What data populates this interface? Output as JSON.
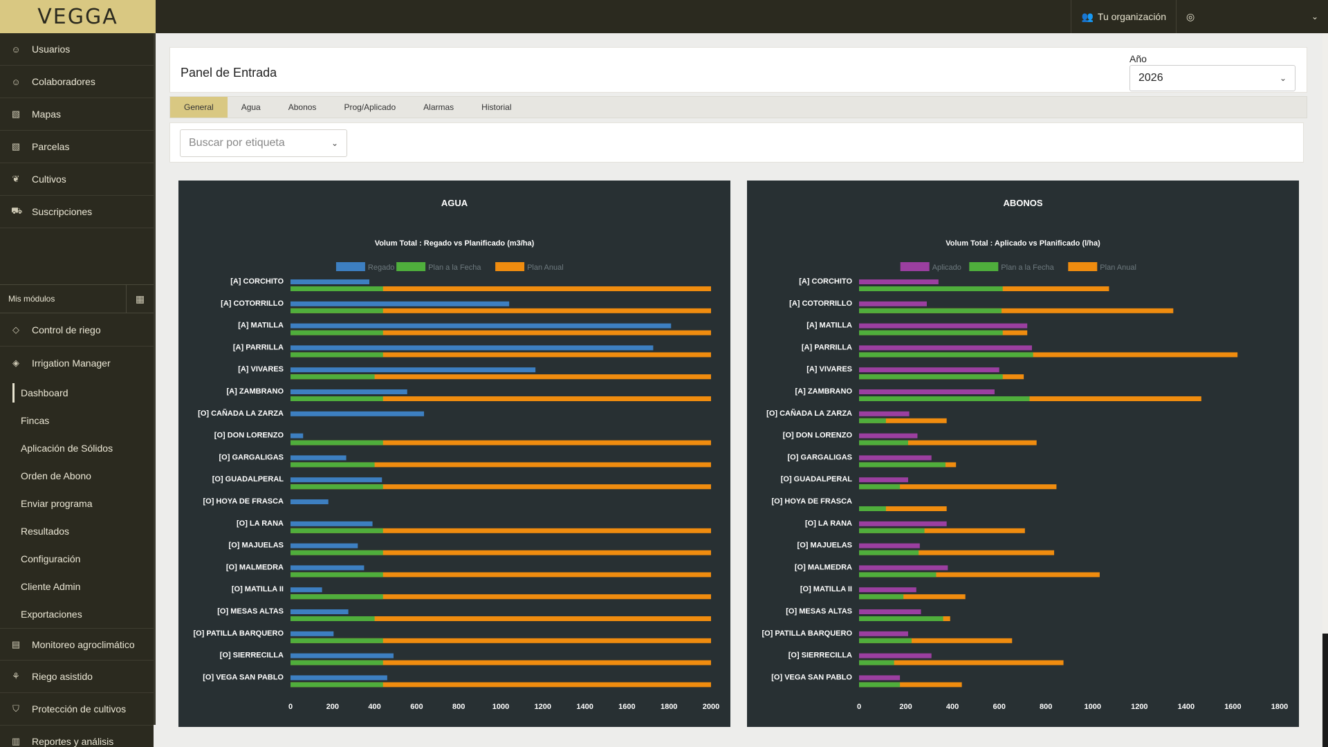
{
  "app": {
    "logo": "VEGGA"
  },
  "topbar": {
    "org_label": "Tu organización",
    "account_label": "",
    "account_chevron": "⌄"
  },
  "sidebar": {
    "items": [
      {
        "label": "Usuarios",
        "icon": "user-icon"
      },
      {
        "label": "Colaboradores",
        "icon": "users-icon"
      },
      {
        "label": "Mapas",
        "icon": "map-icon"
      },
      {
        "label": "Parcelas",
        "icon": "map-icon"
      },
      {
        "label": "Cultivos",
        "icon": "leaf-icon"
      },
      {
        "label": "Suscripciones",
        "icon": "cart-icon"
      }
    ],
    "modules_header": "Mis módulos",
    "modules": [
      {
        "label": "Control de riego",
        "icon": "drop-icon"
      },
      {
        "label": "Irrigation Manager",
        "icon": "drop-icon"
      }
    ],
    "submenu": [
      "Dashboard",
      "Fincas",
      "Aplicación de Sólidos",
      "Orden de Abono",
      "Enviar programa",
      "Resultados",
      "Configuración",
      "Cliente Admin",
      "Exportaciones"
    ],
    "modules_after": [
      {
        "label": "Monitoreo agroclimático",
        "icon": "chart-icon"
      },
      {
        "label": "Riego asistido",
        "icon": "plant-icon"
      },
      {
        "label": "Protección de cultivos",
        "icon": "shield-icon"
      },
      {
        "label": "Reportes y análisis",
        "icon": "report-icon"
      }
    ]
  },
  "header": {
    "title": "Panel de Entrada",
    "year_label": "Año",
    "year_value": "2026"
  },
  "tabs": [
    "General",
    "Agua",
    "Abonos",
    "Prog/Aplicado",
    "Alarmas",
    "Historial"
  ],
  "filter": {
    "tag_placeholder": "Buscar por etiqueta"
  },
  "chart_data": [
    {
      "type": "bar",
      "orientation": "horizontal",
      "panel_title": "AGUA",
      "title": "Volum Total : Regado vs Planificado (m3/ha)",
      "legend_position": "top",
      "categories": [
        "[A] CORCHITO",
        "[A] COTORRILLO",
        "[A] MATILLA",
        "[A] PARRILLA",
        "[A] VIVARES",
        "[A] ZAMBRANO",
        "[O] CAÑADA LA ZARZA",
        "[O] DON LORENZO",
        "[O] GARGALIGAS",
        "[O] GUADALPERAL",
        "[O] HOYA DE FRASCA",
        "[O] LA RANA",
        "[O] MAJUELAS",
        "[O] MALMEDRA",
        "[O] MATILLA II",
        "[O] MESAS ALTAS",
        "[O] PATILLA BARQUERO",
        "[O] SIERRECILLA",
        "[O] VEGA SAN PABLO"
      ],
      "series": [
        {
          "name": "Regado",
          "color": "#3d7fc1",
          "values": [
            375,
            1040,
            1810,
            1725,
            1165,
            555,
            635,
            60,
            265,
            435,
            180,
            390,
            320,
            350,
            150,
            275,
            205,
            490,
            460
          ]
        },
        {
          "name": "Plan a la Fecha",
          "color": "#4fae3c",
          "values": [
            440,
            440,
            440,
            440,
            400,
            440,
            0,
            440,
            400,
            440,
            0,
            440,
            440,
            440,
            440,
            400,
            440,
            440,
            440
          ]
        },
        {
          "name": "Plan Anual",
          "color": "#f08c0f",
          "values": [
            2000,
            2000,
            2000,
            2000,
            2000,
            2000,
            0,
            2000,
            2000,
            2000,
            0,
            2000,
            2000,
            2000,
            2000,
            2000,
            2000,
            2000,
            2000
          ]
        }
      ],
      "xlim": [
        0,
        2000
      ],
      "xticks": [
        0,
        200,
        400,
        600,
        800,
        1000,
        1200,
        1400,
        1600,
        1800,
        2000
      ]
    },
    {
      "type": "bar",
      "orientation": "horizontal",
      "panel_title": "ABONOS",
      "title": "Volum Total : Aplicado vs Planificado (l/ha)",
      "legend_position": "top",
      "categories": [
        "[A] CORCHITO",
        "[A] COTORRILLO",
        "[A] MATILLA",
        "[A] PARRILLA",
        "[A] VIVARES",
        "[A] ZAMBRANO",
        "[O] CAÑADA LA ZARZA",
        "[O] DON LORENZO",
        "[O] GARGALIGAS",
        "[O] GUADALPERAL",
        "[O] HOYA DE FRASCA",
        "[O] LA RANA",
        "[O] MAJUELAS",
        "[O] MALMEDRA",
        "[O] MATILLA II",
        "[O] MESAS ALTAS",
        "[O] PATILLA BARQUERO",
        "[O] SIERRECILLA",
        "[O] VEGA SAN PABLO"
      ],
      "series": [
        {
          "name": "Aplicado",
          "color": "#9b3fa0",
          "values": [
            340,
            290,
            720,
            740,
            600,
            580,
            215,
            250,
            310,
            210,
            0,
            375,
            260,
            380,
            245,
            265,
            210,
            310,
            175
          ]
        },
        {
          "name": "Plan a la Fecha",
          "color": "#4fae3c",
          "values": [
            615,
            610,
            615,
            745,
            615,
            730,
            115,
            210,
            370,
            175,
            115,
            280,
            255,
            330,
            190,
            360,
            225,
            150,
            175
          ]
        },
        {
          "name": "Plan Anual",
          "color": "#f08c0f",
          "values": [
            1070,
            1345,
            720,
            1620,
            705,
            1465,
            375,
            760,
            415,
            845,
            375,
            710,
            835,
            1030,
            455,
            390,
            655,
            875,
            440
          ]
        }
      ],
      "xlim": [
        0,
        1800
      ],
      "xticks": [
        0,
        200,
        400,
        600,
        800,
        1000,
        1200,
        1400,
        1600,
        1800
      ]
    }
  ]
}
